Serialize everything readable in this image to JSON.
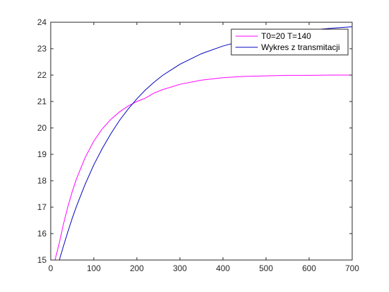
{
  "chart_data": {
    "type": "line",
    "title": "",
    "xlabel": "",
    "ylabel": "",
    "xlim": [
      0,
      700
    ],
    "ylim": [
      15,
      24
    ],
    "xticks": [
      0,
      100,
      200,
      300,
      400,
      500,
      600,
      700
    ],
    "yticks": [
      15,
      16,
      17,
      18,
      19,
      20,
      21,
      22,
      23,
      24
    ],
    "grid": false,
    "legend_position": "top-right",
    "series": [
      {
        "name": "T0=20 T=140",
        "color": "#ff00ff",
        "x": [
          0,
          10,
          20,
          30,
          40,
          50,
          60,
          80,
          100,
          120,
          140,
          160,
          180,
          200,
          220,
          240,
          260,
          300,
          350,
          400,
          450,
          500,
          550,
          600,
          650,
          700
        ],
        "y": [
          15.0,
          15.0,
          15.65,
          16.39,
          17.03,
          17.59,
          18.08,
          18.88,
          19.5,
          19.97,
          20.33,
          20.61,
          20.83,
          21.0,
          21.13,
          21.32,
          21.45,
          21.65,
          21.81,
          21.9,
          21.95,
          21.97,
          21.99,
          21.99,
          22.0,
          22.0
        ]
      },
      {
        "name": "Wykres z transmitacji",
        "color": "#0000bf",
        "x": [
          0,
          10,
          20,
          30,
          40,
          50,
          60,
          80,
          100,
          120,
          140,
          160,
          180,
          200,
          220,
          240,
          260,
          300,
          350,
          400,
          450,
          500,
          550,
          600,
          650,
          700
        ],
        "y": [
          15.0,
          15.0,
          15.0,
          15.55,
          16.08,
          16.58,
          17.04,
          17.87,
          18.6,
          19.23,
          19.79,
          20.29,
          20.72,
          21.1,
          21.44,
          21.73,
          21.99,
          22.41,
          22.81,
          23.1,
          23.32,
          23.48,
          23.6,
          23.7,
          23.77,
          23.83
        ]
      }
    ]
  }
}
